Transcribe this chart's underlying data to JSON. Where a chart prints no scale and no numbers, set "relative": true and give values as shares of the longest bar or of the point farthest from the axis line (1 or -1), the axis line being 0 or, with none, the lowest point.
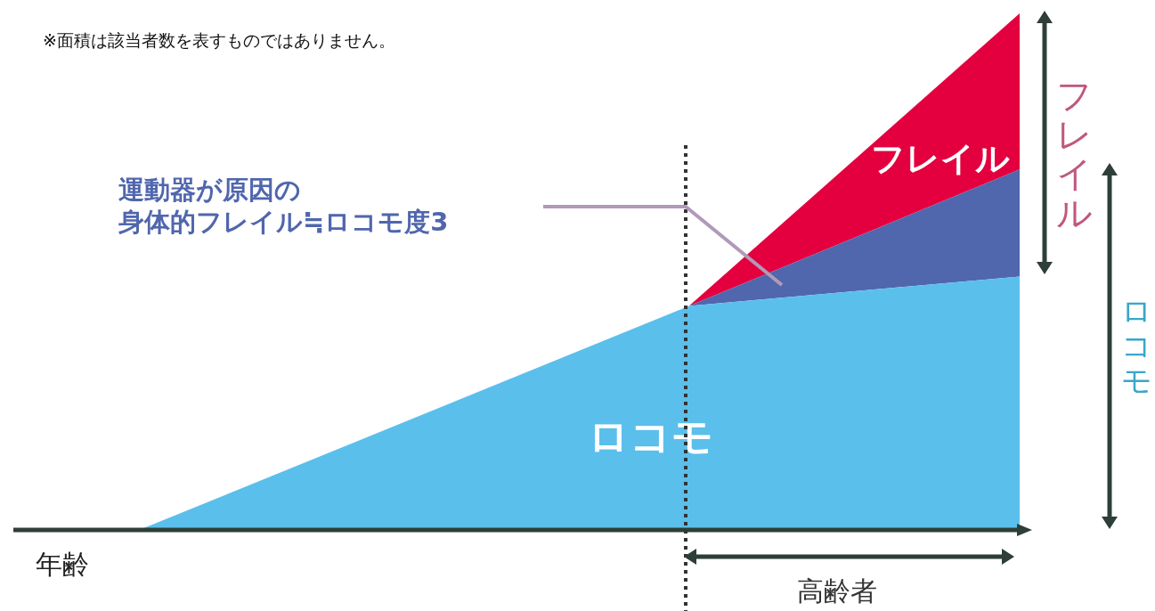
{
  "chart_data": {
    "type": "area",
    "relative": true,
    "stacked": true,
    "legend": false,
    "xlabel": "年齢",
    "categories": [
      null,
      null,
      null,
      null,
      null,
      null,
      null,
      null,
      null
    ],
    "series": [
      {
        "name": "ロコモ",
        "color": "#5bbfec",
        "values": [
          0,
          null,
          null,
          null,
          null,
          0.434,
          null,
          null,
          0.491
        ]
      },
      {
        "name": "運動器が原因の身体的フレイル≒ロコモ度3",
        "color": "#5066ad",
        "values": [
          null,
          null,
          null,
          null,
          null,
          0,
          null,
          null,
          0.207
        ]
      },
      {
        "name": "フレイル",
        "color": "#e4003f",
        "values": [
          null,
          null,
          null,
          null,
          null,
          0,
          null,
          null,
          0.302
        ]
      }
    ],
    "annotations": [
      "※面積は該当者数を表すものではありません。",
      "高齢者",
      "フレイル",
      "ロコモ"
    ]
  }
}
